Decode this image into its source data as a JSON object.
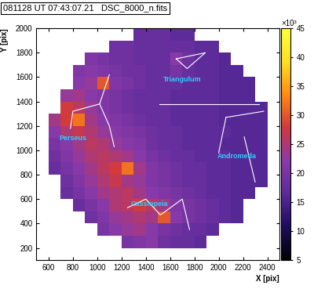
{
  "chart_data": {
    "type": "heatmap",
    "title": "081128 UT 07:43:07.21   DSC_8000_n.fits",
    "x_label": "X [pix]",
    "y_label": "Y [pix]",
    "xlim": [
      500,
      2500
    ],
    "ylim": [
      100,
      2000
    ],
    "xticks": [
      600,
      800,
      1000,
      1200,
      1400,
      1600,
      1800,
      2000,
      2200,
      2400
    ],
    "yticks": [
      200,
      400,
      600,
      800,
      1000,
      1200,
      1400,
      1600,
      1800,
      2000
    ],
    "x_bins": [
      500,
      600,
      700,
      800,
      900,
      1000,
      1100,
      1200,
      1300,
      1400,
      1500,
      1600,
      1700,
      1800,
      1900,
      2000,
      2100,
      2200,
      2300,
      2400,
      2500
    ],
    "y_bins": [
      0,
      100,
      200,
      300,
      400,
      500,
      600,
      700,
      800,
      900,
      1000,
      1100,
      1200,
      1300,
      1400,
      1500,
      1600,
      1700,
      1800,
      1900,
      2000
    ],
    "cells": [
      [
        null,
        null,
        null,
        null,
        null,
        null,
        null,
        null,
        null,
        null,
        null,
        null,
        null,
        null,
        null,
        null,
        null,
        null,
        null,
        null
      ],
      [
        null,
        null,
        null,
        null,
        null,
        null,
        null,
        null,
        null,
        null,
        null,
        null,
        null,
        null,
        null,
        null,
        null,
        null,
        null,
        null
      ],
      [
        null,
        null,
        null,
        null,
        null,
        null,
        null,
        20,
        21,
        22,
        19,
        18,
        18,
        17,
        null,
        null,
        null,
        null,
        null,
        null
      ],
      [
        null,
        null,
        null,
        null,
        null,
        20,
        22,
        23,
        24,
        22,
        20,
        19,
        18,
        18,
        17,
        null,
        null,
        null,
        null,
        null
      ],
      [
        null,
        null,
        null,
        null,
        19,
        21,
        23,
        24,
        25,
        24,
        30,
        22,
        20,
        19,
        18,
        17,
        16,
        null,
        null,
        null
      ],
      [
        null,
        null,
        null,
        18,
        20,
        22,
        25,
        26,
        28,
        26,
        24,
        21,
        20,
        19,
        18,
        17,
        16,
        null,
        null,
        null
      ],
      [
        null,
        null,
        18,
        20,
        22,
        24,
        25,
        26,
        24,
        22,
        21,
        20,
        19,
        18,
        17,
        17,
        16,
        16,
        null,
        null
      ],
      [
        null,
        null,
        19,
        21,
        23,
        25,
        27,
        24,
        23,
        21,
        20,
        19,
        18,
        18,
        17,
        17,
        16,
        16,
        16,
        null
      ],
      [
        null,
        18,
        20,
        22,
        24,
        26,
        28,
        32,
        24,
        21,
        20,
        19,
        18,
        18,
        17,
        17,
        16,
        16,
        16,
        null
      ],
      [
        null,
        19,
        21,
        23,
        25,
        26,
        25,
        24,
        22,
        20,
        19,
        18,
        18,
        17,
        17,
        17,
        16,
        16,
        16,
        null
      ],
      [
        null,
        20,
        22,
        24,
        26,
        25,
        23,
        22,
        21,
        19,
        18,
        18,
        17,
        17,
        17,
        16,
        16,
        16,
        16,
        null
      ],
      [
        null,
        22,
        25,
        27,
        25,
        23,
        22,
        21,
        20,
        19,
        18,
        18,
        17,
        17,
        17,
        17,
        16,
        16,
        16,
        null
      ],
      [
        null,
        24,
        28,
        32,
        24,
        22,
        21,
        20,
        19,
        18,
        18,
        17,
        17,
        17,
        17,
        16,
        16,
        16,
        16,
        null
      ],
      [
        null,
        null,
        28,
        26,
        23,
        21,
        20,
        19,
        18,
        18,
        18,
        17,
        17,
        17,
        17,
        16,
        16,
        16,
        16,
        null
      ],
      [
        null,
        null,
        23,
        24,
        22,
        21,
        20,
        19,
        18,
        18,
        18,
        17,
        17,
        17,
        17,
        16,
        16,
        16,
        null,
        null
      ],
      [
        null,
        null,
        null,
        22,
        23,
        30,
        21,
        20,
        19,
        18,
        18,
        18,
        17,
        17,
        17,
        16,
        16,
        16,
        null,
        null
      ],
      [
        null,
        null,
        null,
        21,
        22,
        21,
        20,
        19,
        19,
        18,
        18,
        20,
        18,
        17,
        17,
        16,
        16,
        null,
        null,
        null
      ],
      [
        null,
        null,
        null,
        null,
        21,
        20,
        19,
        19,
        18,
        18,
        18,
        22,
        19,
        17,
        17,
        16,
        null,
        null,
        null,
        null
      ],
      [
        null,
        null,
        null,
        null,
        null,
        null,
        19,
        19,
        18,
        18,
        18,
        18,
        18,
        17,
        17,
        null,
        null,
        null,
        null,
        null
      ],
      [
        null,
        null,
        null,
        null,
        null,
        null,
        null,
        null,
        18,
        18,
        18,
        17,
        17,
        null,
        null,
        null,
        null,
        null,
        null,
        null
      ]
    ],
    "colorbar_range": [
      5,
      45
    ],
    "colorbar_ticks": [
      5,
      10,
      15,
      20,
      25,
      30,
      35,
      40,
      45
    ],
    "colorbar_label": "×10³",
    "constellations": [
      {
        "name": "Triangulum",
        "label_at": [
          1700,
          1580
        ],
        "lines": [
          [
            [
              1650,
              1750
            ],
            [
              1890,
              1800
            ],
            [
              1740,
              1670
            ],
            [
              1650,
              1750
            ]
          ]
        ]
      },
      {
        "name": "Perseus",
        "label_at": [
          800,
          1100
        ],
        "lines": [
          [
            [
              1100,
              1620
            ],
            [
              1020,
              1380
            ],
            [
              1100,
              1200
            ],
            [
              1140,
              1030
            ]
          ],
          [
            [
              1020,
              1380
            ],
            [
              800,
              1320
            ],
            [
              780,
              1180
            ]
          ]
        ]
      },
      {
        "name": "Andromeda",
        "label_at": [
          2150,
          950
        ],
        "lines": [
          [
            [
              1510,
              1380
            ],
            [
              2330,
              1380
            ]
          ],
          [
            [
              2060,
              1270
            ],
            [
              2370,
              1320
            ]
          ],
          [
            [
              2060,
              1270
            ],
            [
              2000,
              980
            ]
          ],
          [
            [
              2210,
              1110
            ],
            [
              2300,
              740
            ]
          ]
        ]
      },
      {
        "name": "Cassiopeia",
        "label_at": [
          1430,
          560
        ],
        "lines": [
          [
            [
              1250,
              530
            ],
            [
              1400,
              600
            ],
            [
              1520,
              470
            ],
            [
              1700,
              600
            ],
            [
              1760,
              350
            ]
          ]
        ]
      }
    ]
  }
}
